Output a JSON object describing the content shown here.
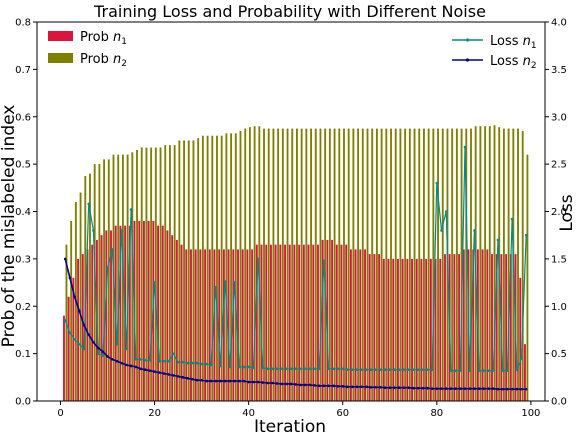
{
  "chart_data": {
    "type": "bar",
    "title": "Training Loss and Probability with Different Noise",
    "xlabel": "Iteration",
    "ylabel": "Prob of the mislabeled index",
    "ylabel_right": "Loss",
    "xlim": [
      -5,
      103
    ],
    "xticks": [
      0,
      20,
      40,
      60,
      80,
      100
    ],
    "ylim": [
      0,
      0.8
    ],
    "yticks": [
      "0.0",
      "0.1",
      "0.2",
      "0.3",
      "0.4",
      "0.5",
      "0.6",
      "0.7",
      "0.8"
    ],
    "ylim_right": [
      0,
      4.0
    ],
    "yticks_right": [
      "0.0",
      "0.5",
      "1.0",
      "1.5",
      "2.0",
      "2.5",
      "3.0",
      "3.5",
      "4.0"
    ],
    "legend_left_position": "upper-left",
    "legend_right_position": "upper-right",
    "grid": false,
    "x": [
      1,
      2,
      3,
      4,
      5,
      6,
      7,
      8,
      9,
      10,
      11,
      12,
      13,
      14,
      15,
      16,
      17,
      18,
      19,
      20,
      21,
      22,
      23,
      24,
      25,
      26,
      27,
      28,
      29,
      30,
      31,
      32,
      33,
      34,
      35,
      36,
      37,
      38,
      39,
      40,
      41,
      42,
      43,
      44,
      45,
      46,
      47,
      48,
      49,
      50,
      51,
      52,
      53,
      54,
      55,
      56,
      57,
      58,
      59,
      60,
      61,
      62,
      63,
      64,
      65,
      66,
      67,
      68,
      69,
      70,
      71,
      72,
      73,
      74,
      75,
      76,
      77,
      78,
      79,
      80,
      81,
      82,
      83,
      84,
      85,
      86,
      87,
      88,
      89,
      90,
      91,
      92,
      93,
      94,
      95,
      96,
      97,
      98,
      99
    ],
    "bar_series": [
      {
        "name": "Prob $n_1$",
        "label_base": "Prob n",
        "label_sub": "1",
        "color": "#dc143c",
        "values": [
          0.18,
          0.22,
          0.26,
          0.3,
          0.31,
          0.32,
          0.33,
          0.34,
          0.35,
          0.36,
          0.36,
          0.37,
          0.37,
          0.37,
          0.37,
          0.38,
          0.38,
          0.38,
          0.38,
          0.38,
          0.37,
          0.37,
          0.36,
          0.35,
          0.34,
          0.33,
          0.32,
          0.32,
          0.32,
          0.32,
          0.32,
          0.32,
          0.32,
          0.32,
          0.32,
          0.32,
          0.32,
          0.32,
          0.32,
          0.32,
          0.32,
          0.33,
          0.33,
          0.33,
          0.33,
          0.33,
          0.33,
          0.33,
          0.33,
          0.33,
          0.33,
          0.33,
          0.33,
          0.33,
          0.33,
          0.34,
          0.34,
          0.34,
          0.33,
          0.33,
          0.33,
          0.32,
          0.32,
          0.32,
          0.32,
          0.31,
          0.31,
          0.31,
          0.3,
          0.3,
          0.3,
          0.3,
          0.3,
          0.3,
          0.3,
          0.3,
          0.3,
          0.3,
          0.3,
          0.3,
          0.3,
          0.31,
          0.31,
          0.31,
          0.31,
          0.32,
          0.32,
          0.32,
          0.32,
          0.32,
          0.32,
          0.31,
          0.31,
          0.31,
          0.31,
          0.31,
          0.31,
          0.26,
          0.12
        ]
      },
      {
        "name": "Prob $n_2$",
        "label_base": "Prob n",
        "label_sub": "2",
        "color": "#808000",
        "values": [
          0.33,
          0.38,
          0.42,
          0.44,
          0.475,
          0.48,
          0.5,
          0.5,
          0.51,
          0.51,
          0.52,
          0.52,
          0.52,
          0.52,
          0.525,
          0.53,
          0.535,
          0.535,
          0.535,
          0.535,
          0.535,
          0.54,
          0.54,
          0.54,
          0.55,
          0.55,
          0.55,
          0.55,
          0.555,
          0.56,
          0.56,
          0.56,
          0.56,
          0.56,
          0.565,
          0.565,
          0.565,
          0.57,
          0.575,
          0.578,
          0.58,
          0.58,
          0.575,
          0.575,
          0.575,
          0.575,
          0.575,
          0.575,
          0.575,
          0.575,
          0.575,
          0.575,
          0.575,
          0.575,
          0.575,
          0.575,
          0.575,
          0.575,
          0.575,
          0.575,
          0.575,
          0.575,
          0.575,
          0.575,
          0.575,
          0.575,
          0.575,
          0.575,
          0.575,
          0.575,
          0.575,
          0.575,
          0.575,
          0.575,
          0.575,
          0.575,
          0.575,
          0.575,
          0.575,
          0.575,
          0.575,
          0.575,
          0.575,
          0.575,
          0.575,
          0.575,
          0.575,
          0.58,
          0.58,
          0.58,
          0.58,
          0.582,
          0.578,
          0.575,
          0.575,
          0.575,
          0.575,
          0.57,
          0.52
        ]
      }
    ],
    "line_series": [
      {
        "name": "Loss $n_1$",
        "label_base": "Loss n",
        "label_sub": "1",
        "color": "#008b8b",
        "values": [
          0.85,
          0.72,
          0.65,
          0.6,
          0.55,
          2.08,
          1.8,
          0.5,
          0.48,
          1.4,
          1.6,
          0.6,
          1.8,
          0.55,
          2.02,
          0.44,
          0.44,
          0.43,
          0.43,
          1.25,
          0.42,
          0.42,
          0.42,
          0.5,
          0.41,
          0.41,
          0.4,
          0.4,
          0.4,
          0.39,
          0.39,
          0.38,
          1.2,
          0.37,
          1.26,
          0.36,
          1.25,
          0.36,
          0.36,
          0.36,
          0.35,
          1.5,
          0.35,
          0.34,
          0.34,
          0.34,
          0.34,
          0.34,
          0.34,
          0.34,
          0.34,
          0.34,
          0.34,
          0.34,
          0.34,
          1.48,
          0.34,
          0.34,
          0.34,
          0.34,
          0.33,
          0.33,
          0.33,
          0.33,
          0.33,
          0.33,
          0.33,
          0.33,
          0.33,
          0.33,
          0.33,
          0.33,
          0.33,
          0.33,
          0.33,
          0.33,
          0.33,
          0.33,
          0.33,
          2.3,
          1.8,
          2.0,
          0.32,
          0.32,
          0.32,
          2.68,
          0.32,
          1.8,
          0.32,
          0.32,
          0.32,
          0.32,
          1.7,
          0.32,
          0.32,
          1.92,
          0.33,
          0.45,
          1.75
        ]
      },
      {
        "name": "Loss $n_2$",
        "label_base": "Loss n",
        "label_sub": "2",
        "color": "#00008b",
        "values": [
          1.5,
          1.3,
          1.1,
          0.95,
          0.8,
          0.7,
          0.62,
          0.56,
          0.52,
          0.47,
          0.44,
          0.42,
          0.4,
          0.38,
          0.37,
          0.36,
          0.34,
          0.33,
          0.32,
          0.31,
          0.3,
          0.29,
          0.28,
          0.27,
          0.26,
          0.25,
          0.24,
          0.23,
          0.22,
          0.22,
          0.21,
          0.21,
          0.21,
          0.21,
          0.21,
          0.21,
          0.21,
          0.21,
          0.21,
          0.2,
          0.2,
          0.2,
          0.195,
          0.19,
          0.19,
          0.185,
          0.18,
          0.18,
          0.18,
          0.175,
          0.17,
          0.17,
          0.17,
          0.165,
          0.16,
          0.16,
          0.16,
          0.16,
          0.155,
          0.155,
          0.15,
          0.15,
          0.15,
          0.15,
          0.15,
          0.145,
          0.145,
          0.145,
          0.14,
          0.14,
          0.14,
          0.14,
          0.14,
          0.14,
          0.135,
          0.135,
          0.135,
          0.135,
          0.13,
          0.13,
          0.13,
          0.13,
          0.13,
          0.13,
          0.13,
          0.13,
          0.13,
          0.13,
          0.13,
          0.13,
          0.13,
          0.13,
          0.125,
          0.125,
          0.125,
          0.125,
          0.125,
          0.125,
          0.125
        ]
      }
    ]
  }
}
